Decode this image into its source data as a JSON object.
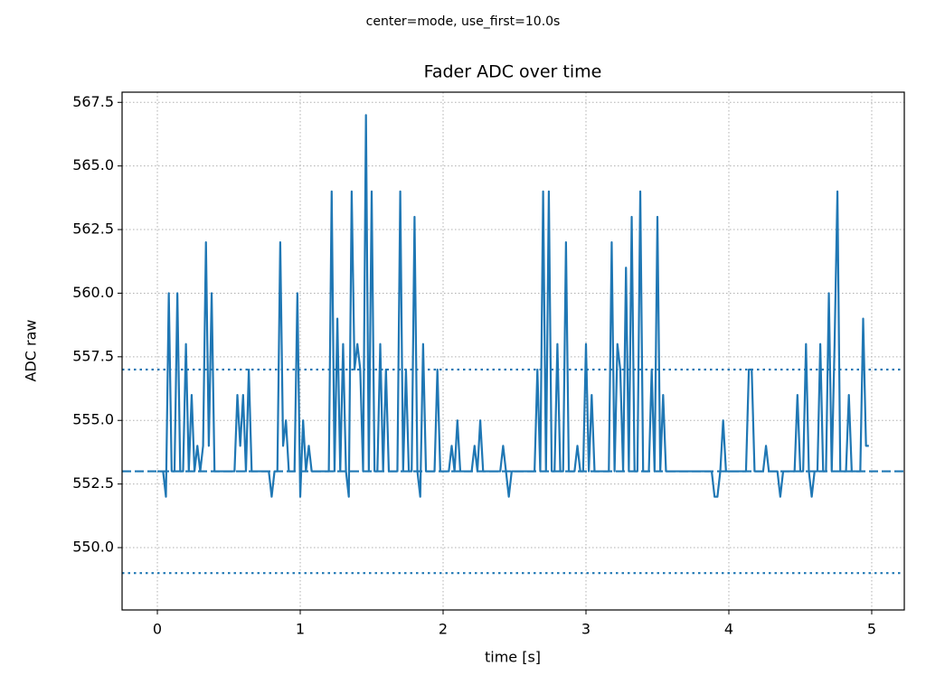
{
  "chart_data": {
    "type": "line",
    "suptitle": "center=mode, use_first=10.0s",
    "title": "Fader ADC over time",
    "xlabel": "time [s]",
    "ylabel": "ADC raw",
    "grid": true,
    "xlim": [
      -0.247,
      5.228
    ],
    "ylim": [
      547.55,
      567.9
    ],
    "xticks": [
      0,
      1,
      2,
      3,
      4,
      5
    ],
    "yticks": [
      {
        "value": 550,
        "label": "550.0"
      },
      {
        "value": 552.5,
        "label": "552.5"
      },
      {
        "value": 555,
        "label": "555.0"
      },
      {
        "value": 557.5,
        "label": "557.5"
      },
      {
        "value": 560,
        "label": "560.0"
      },
      {
        "value": 562.5,
        "label": "562.5"
      },
      {
        "value": 565,
        "label": "565.0"
      },
      {
        "value": 567.5,
        "label": "567.5"
      }
    ],
    "hlines": [
      {
        "value": 553,
        "style": "dashed",
        "color": "#1f77b4"
      },
      {
        "value": 557,
        "style": "dotted",
        "color": "#1f77b4"
      },
      {
        "value": 549,
        "style": "dotted",
        "color": "#1f77b4"
      }
    ],
    "x": [
      0,
      0.02,
      0.04,
      0.06,
      0.08,
      0.1,
      0.12,
      0.14,
      0.16,
      0.18,
      0.2,
      0.22,
      0.24,
      0.26,
      0.28,
      0.3,
      0.32,
      0.34,
      0.36,
      0.38,
      0.4,
      0.42,
      0.44,
      0.46,
      0.48,
      0.5,
      0.52,
      0.54,
      0.56,
      0.58,
      0.6,
      0.62,
      0.64,
      0.66,
      0.68,
      0.7,
      0.72,
      0.74,
      0.76,
      0.78,
      0.8,
      0.82,
      0.84,
      0.86,
      0.88,
      0.9,
      0.92,
      0.94,
      0.96,
      0.98,
      1,
      1.02,
      1.04,
      1.06,
      1.08,
      1.1,
      1.12,
      1.14,
      1.16,
      1.18,
      1.2,
      1.22,
      1.24,
      1.26,
      1.28,
      1.3,
      1.32,
      1.34,
      1.36,
      1.38,
      1.4,
      1.42,
      1.44,
      1.46,
      1.48,
      1.5,
      1.52,
      1.54,
      1.56,
      1.58,
      1.6,
      1.62,
      1.64,
      1.66,
      1.68,
      1.7,
      1.72,
      1.74,
      1.76,
      1.78,
      1.8,
      1.82,
      1.84,
      1.86,
      1.88,
      1.9,
      1.92,
      1.94,
      1.96,
      1.98,
      2,
      2.02,
      2.04,
      2.06,
      2.08,
      2.1,
      2.12,
      2.14,
      2.16,
      2.18,
      2.2,
      2.22,
      2.24,
      2.26,
      2.28,
      2.3,
      2.32,
      2.34,
      2.36,
      2.38,
      2.4,
      2.42,
      2.44,
      2.46,
      2.48,
      2.5,
      2.52,
      2.54,
      2.56,
      2.58,
      2.6,
      2.62,
      2.64,
      2.66,
      2.68,
      2.7,
      2.72,
      2.74,
      2.76,
      2.78,
      2.8,
      2.82,
      2.84,
      2.86,
      2.88,
      2.9,
      2.92,
      2.94,
      2.96,
      2.98,
      3,
      3.02,
      3.04,
      3.06,
      3.08,
      3.1,
      3.12,
      3.14,
      3.16,
      3.18,
      3.2,
      3.22,
      3.24,
      3.26,
      3.28,
      3.3,
      3.32,
      3.34,
      3.36,
      3.38,
      3.4,
      3.42,
      3.44,
      3.46,
      3.48,
      3.5,
      3.52,
      3.54,
      3.56,
      3.58,
      3.6,
      3.62,
      3.64,
      3.66,
      3.68,
      3.7,
      3.72,
      3.74,
      3.76,
      3.78,
      3.8,
      3.82,
      3.84,
      3.86,
      3.88,
      3.9,
      3.92,
      3.94,
      3.96,
      3.98,
      4,
      4.02,
      4.04,
      4.06,
      4.08,
      4.1,
      4.12,
      4.14,
      4.16,
      4.18,
      4.2,
      4.22,
      4.24,
      4.26,
      4.28,
      4.3,
      4.32,
      4.34,
      4.36,
      4.38,
      4.4,
      4.42,
      4.44,
      4.46,
      4.48,
      4.5,
      4.52,
      4.54,
      4.56,
      4.58,
      4.6,
      4.62,
      4.64,
      4.66,
      4.68,
      4.7,
      4.72,
      4.74,
      4.76,
      4.78,
      4.8,
      4.82,
      4.84,
      4.86,
      4.88,
      4.9,
      4.92,
      4.94,
      4.96,
      4.98
    ],
    "series": [
      {
        "color": "#1f77b4",
        "values": [
          553,
          553,
          553,
          552,
          560,
          553,
          553,
          560,
          553,
          553,
          558,
          553,
          556,
          553,
          554,
          553,
          554,
          562,
          554,
          560,
          553,
          553,
          553,
          553,
          553,
          553,
          553,
          553,
          556,
          554,
          556,
          553,
          557,
          553,
          553,
          553,
          553,
          553,
          553,
          553,
          552,
          553,
          553,
          562,
          554,
          555,
          553,
          553,
          553,
          560,
          552,
          555,
          553,
          554,
          553,
          553,
          553,
          553,
          553,
          553,
          553,
          564,
          553,
          559,
          553,
          558,
          553,
          552,
          564,
          557,
          558,
          557,
          553,
          567,
          553,
          564,
          553,
          553,
          558,
          553,
          557,
          553,
          553,
          553,
          553,
          564,
          553,
          557,
          553,
          553,
          563,
          553,
          552,
          558,
          553,
          553,
          553,
          553,
          557,
          553,
          553,
          553,
          553,
          554,
          553,
          555,
          553,
          553,
          553,
          553,
          553,
          554,
          553,
          555,
          553,
          553,
          553,
          553,
          553,
          553,
          553,
          554,
          553,
          552,
          553,
          553,
          553,
          553,
          553,
          553,
          553,
          553,
          553,
          557,
          553,
          564,
          553,
          564,
          553,
          553,
          558,
          553,
          553,
          562,
          553,
          553,
          553,
          554,
          553,
          553,
          558,
          553,
          556,
          553,
          553,
          553,
          553,
          553,
          553,
          562,
          553,
          558,
          557,
          553,
          561,
          553,
          563,
          553,
          553,
          564,
          553,
          553,
          553,
          557,
          553,
          563,
          553,
          556,
          553,
          553,
          553,
          553,
          553,
          553,
          553,
          553,
          553,
          553,
          553,
          553,
          553,
          553,
          553,
          553,
          553,
          552,
          552,
          553,
          555,
          553,
          553,
          553,
          553,
          553,
          553,
          553,
          553,
          557,
          557,
          553,
          553,
          553,
          553,
          554,
          553,
          553,
          553,
          553,
          552,
          553,
          553,
          553,
          553,
          553,
          556,
          553,
          553,
          558,
          553,
          552,
          553,
          553,
          558,
          553,
          553,
          560,
          553,
          558,
          564,
          553,
          553,
          553,
          556,
          553,
          553,
          553,
          553,
          559,
          554,
          554
        ]
      }
    ]
  }
}
